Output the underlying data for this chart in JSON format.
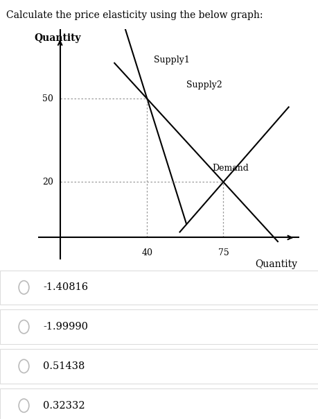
{
  "title": "Calculate the price elasticity using the below graph:",
  "title_fontsize": 10,
  "ylabel": "Quantity",
  "xlabel": "Quantity",
  "bg_color": "#ffffff",
  "supply1_label": "Supply1",
  "supply2_label": "Supply2",
  "demand_label": "Demand",
  "options": [
    "-1.40816",
    "-1.99990",
    "0.51438",
    "0.32332"
  ],
  "option_fontsize": 10.5,
  "line_color": "#000000",
  "dotted_color": "#999999",
  "radio_color": "#bbbbbb",
  "box_color": "#dddddd"
}
